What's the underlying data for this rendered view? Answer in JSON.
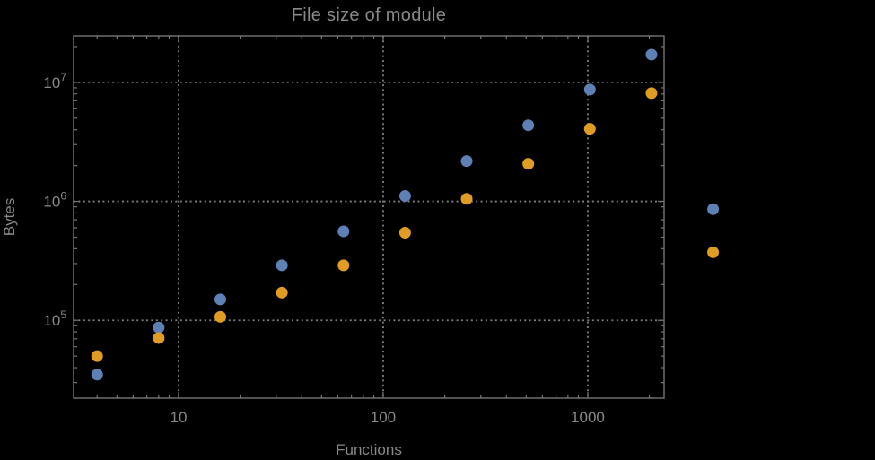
{
  "chart_data": {
    "type": "scatter",
    "title": "File size of module",
    "xlabel": "Functions",
    "ylabel": "Bytes",
    "x_scale": "log",
    "y_scale": "log",
    "grid": "dotted",
    "legend": "none",
    "xlim_log10": [
      0.487,
      3.373
    ],
    "ylim_log10": [
      4.346,
      7.391
    ],
    "x_ticks": {
      "values": [
        10,
        100,
        1000
      ],
      "labels": [
        "10",
        "100",
        "1000"
      ]
    },
    "y_ticks": {
      "values": [
        100000,
        1000000,
        10000000
      ],
      "base": "10",
      "exponents": [
        "5",
        "6",
        "7"
      ]
    },
    "colors": {
      "background": "#000000",
      "frame": "#767676",
      "grid": "#7f7f7f",
      "text": "#888888"
    },
    "x": [
      4,
      8,
      16,
      32,
      64,
      128,
      256,
      512,
      1024,
      2048,
      4096
    ],
    "series": [
      {
        "name": "blue",
        "color": "#5E81B5",
        "y": [
          35000,
          87000,
          150000,
          290000,
          560000,
          1110000,
          2180000,
          4360000,
          8700000,
          17100000,
          860000
        ]
      },
      {
        "name": "orange",
        "color": "#E19C24",
        "y": [
          50000,
          71000,
          107000,
          171000,
          290000,
          545000,
          1050000,
          2070000,
          4070000,
          8120000,
          373000
        ]
      }
    ]
  }
}
